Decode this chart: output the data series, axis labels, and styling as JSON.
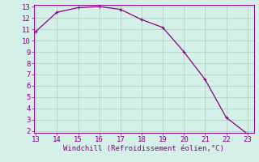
{
  "x": [
    13,
    14,
    15,
    16,
    17,
    18,
    19,
    20,
    21,
    22,
    23
  ],
  "y": [
    10.8,
    12.5,
    12.9,
    13.0,
    12.75,
    11.85,
    11.15,
    9.0,
    6.55,
    3.2,
    1.75
  ],
  "line_color": "#880088",
  "marker_color": "#880088",
  "bg_color": "#d4f0e8",
  "grid_color": "#aaccbb",
  "xlabel": "Windchill (Refroidissement éolien,°C)",
  "xlim": [
    13,
    23
  ],
  "ylim": [
    2,
    13
  ],
  "xticks": [
    13,
    14,
    15,
    16,
    17,
    18,
    19,
    20,
    21,
    22,
    23
  ],
  "yticks": [
    2,
    3,
    4,
    5,
    6,
    7,
    8,
    9,
    10,
    11,
    12,
    13
  ],
  "xlabel_color": "#880088",
  "tick_color": "#880088",
  "font_size": 6.5,
  "marker_size": 2.5,
  "linewidth": 0.9
}
